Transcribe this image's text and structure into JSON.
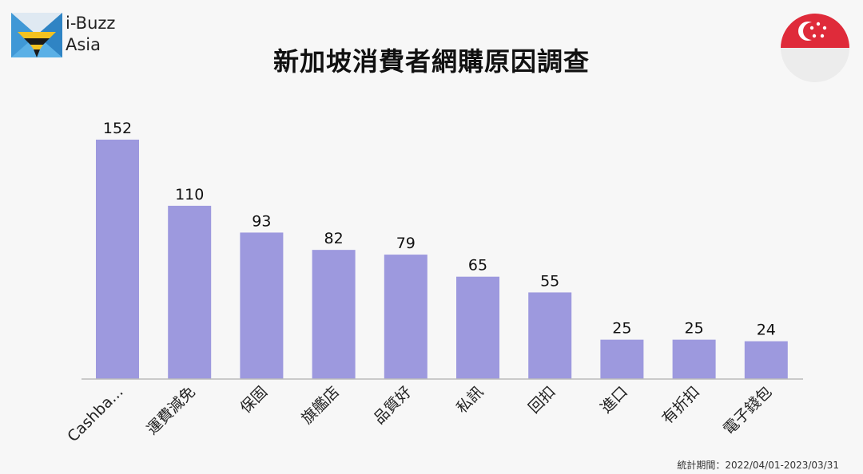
{
  "brand": {
    "line1": "i-Buzz",
    "line2": "Asia"
  },
  "title": "新加坡消費者網購原因調查",
  "footer": "統計期間：2022/04/01-2023/03/31",
  "colors": {
    "bar": "#9d99de",
    "axis": "#bcbcbc",
    "flag_red": "#df2b3a",
    "flag_white": "#f2f2f2"
  },
  "icons": {
    "logo": "i-buzz-logo-icon",
    "flag": "singapore-flag-icon"
  },
  "chart_data": {
    "type": "bar",
    "categories": [
      "Cashba...",
      "運費減免",
      "保固",
      "旗艦店",
      "品質好",
      "私訊",
      "回扣",
      "進口",
      "有折扣",
      "電子錢包"
    ],
    "values": [
      152,
      110,
      93,
      82,
      79,
      65,
      55,
      25,
      25,
      24
    ],
    "title": "新加坡消費者網購原因調查",
    "xlabel": "",
    "ylabel": "",
    "ylim": [
      0,
      152
    ],
    "grid": false,
    "legend": "none",
    "data_labels": true
  }
}
